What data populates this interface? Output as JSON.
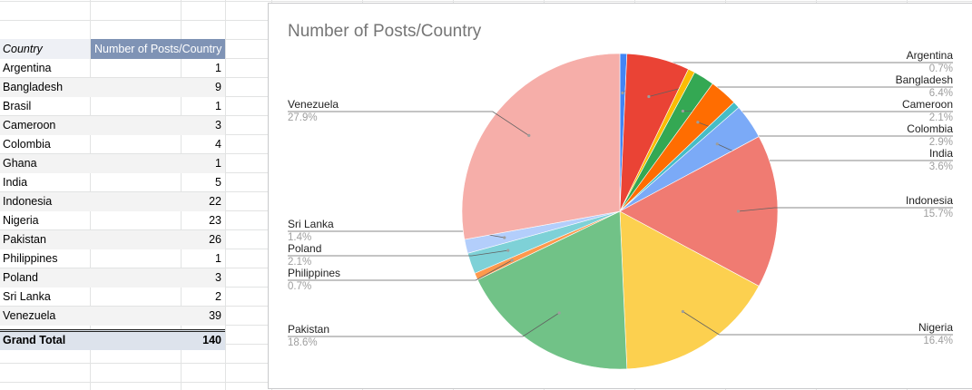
{
  "table": {
    "header": {
      "country": "Country",
      "posts": "Number of Posts/Country"
    },
    "rows": [
      {
        "country": "Argentina",
        "posts": "1"
      },
      {
        "country": "Bangladesh",
        "posts": "9"
      },
      {
        "country": "Brasil",
        "posts": "1"
      },
      {
        "country": "Cameroon",
        "posts": "3"
      },
      {
        "country": "Colombia",
        "posts": "4"
      },
      {
        "country": "Ghana",
        "posts": "1"
      },
      {
        "country": "India",
        "posts": "5"
      },
      {
        "country": "Indonesia",
        "posts": "22"
      },
      {
        "country": "Nigeria",
        "posts": "23"
      },
      {
        "country": "Pakistan",
        "posts": "26"
      },
      {
        "country": "Philippines",
        "posts": "1"
      },
      {
        "country": "Poland",
        "posts": "3"
      },
      {
        "country": "Sri Lanka",
        "posts": "2"
      },
      {
        "country": "Venezuela",
        "posts": "39"
      }
    ],
    "total": {
      "label": "Grand Total",
      "value": "140"
    }
  },
  "chart_data": {
    "type": "pie",
    "title": "Number of Posts/Country",
    "slices": [
      {
        "name": "Argentina",
        "value": 1,
        "pct_label": "0.7%",
        "color": "#4285f4",
        "label_shown": true
      },
      {
        "name": "Bangladesh",
        "value": 9,
        "pct_label": "6.4%",
        "color": "#ea4335",
        "label_shown": true
      },
      {
        "name": "Brasil",
        "value": 1,
        "pct_label": "",
        "color": "#fbbc04",
        "label_shown": false
      },
      {
        "name": "Cameroon",
        "value": 3,
        "pct_label": "2.1%",
        "color": "#34a853",
        "label_shown": true
      },
      {
        "name": "Colombia",
        "value": 4,
        "pct_label": "2.9%",
        "color": "#ff6d01",
        "label_shown": true
      },
      {
        "name": "Ghana",
        "value": 1,
        "pct_label": "",
        "color": "#46bdc6",
        "label_shown": false
      },
      {
        "name": "India",
        "value": 5,
        "pct_label": "3.6%",
        "color": "#7baaf7",
        "label_shown": true
      },
      {
        "name": "Indonesia",
        "value": 22,
        "pct_label": "15.7%",
        "color": "#f07b72",
        "label_shown": true
      },
      {
        "name": "Nigeria",
        "value": 23,
        "pct_label": "16.4%",
        "color": "#fcd04f",
        "label_shown": true
      },
      {
        "name": "Pakistan",
        "value": 26,
        "pct_label": "18.6%",
        "color": "#71c287",
        "label_shown": true
      },
      {
        "name": "Philippines",
        "value": 1,
        "pct_label": "0.7%",
        "color": "#ff994d",
        "label_shown": true
      },
      {
        "name": "Poland",
        "value": 3,
        "pct_label": "2.1%",
        "color": "#7ed1d7",
        "label_shown": true
      },
      {
        "name": "Sri Lanka",
        "value": 2,
        "pct_label": "1.4%",
        "color": "#b3cefb",
        "label_shown": true
      },
      {
        "name": "Venezuela",
        "value": 39,
        "pct_label": "27.9%",
        "color": "#f6aea9",
        "label_shown": true
      }
    ]
  }
}
